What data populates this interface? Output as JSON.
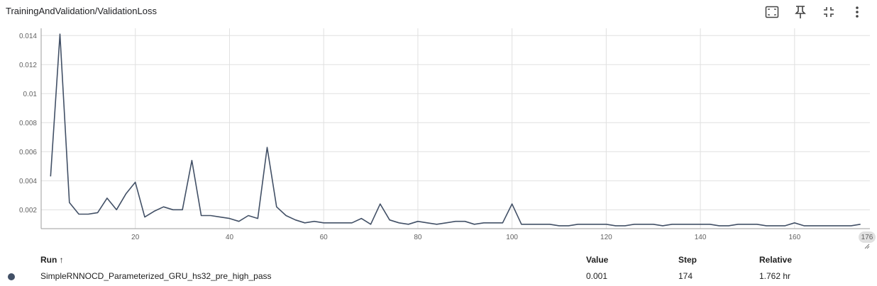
{
  "title": "TrainingAndValidation/ValidationLoss",
  "toolbar": {
    "icons": [
      "fit-domain-icon",
      "pin-icon",
      "fullscreen-exit-icon",
      "more-vert-icon"
    ]
  },
  "colors": {
    "series": "#425066",
    "grid": "#e0e0e0",
    "axis": "#9e9e9e"
  },
  "chart_data": {
    "type": "line",
    "title": "TrainingAndValidation/ValidationLoss",
    "xlabel": "",
    "ylabel": "",
    "xlim": [
      0,
      176
    ],
    "ylim": [
      0.0007,
      0.0145
    ],
    "x_ticks": [
      20,
      40,
      60,
      80,
      100,
      120,
      140,
      160
    ],
    "y_ticks": [
      0.002,
      0.004,
      0.006,
      0.008,
      0.01,
      0.012,
      0.014
    ],
    "y_tick_labels": [
      "0.002",
      "0.004",
      "0.006",
      "0.008",
      "0.01",
      "0.012",
      "0.014"
    ],
    "x_edge_label": "176",
    "grid": true,
    "series": [
      {
        "name": "SimpleRNNOCD_Parameterized_GRU_hs32_pre_high_pass",
        "color": "#425066",
        "x": [
          2,
          4,
          6,
          8,
          10,
          12,
          14,
          16,
          18,
          20,
          22,
          24,
          26,
          28,
          30,
          32,
          34,
          36,
          38,
          40,
          42,
          44,
          46,
          48,
          50,
          52,
          54,
          56,
          58,
          60,
          62,
          64,
          66,
          68,
          70,
          72,
          74,
          76,
          78,
          80,
          82,
          84,
          86,
          88,
          90,
          92,
          94,
          96,
          98,
          100,
          102,
          104,
          106,
          108,
          110,
          112,
          114,
          116,
          118,
          120,
          122,
          124,
          126,
          128,
          130,
          132,
          134,
          136,
          138,
          140,
          142,
          144,
          146,
          148,
          150,
          152,
          154,
          156,
          158,
          160,
          162,
          164,
          166,
          168,
          170,
          172,
          174
        ],
        "y": [
          0.0043,
          0.0141,
          0.0025,
          0.0017,
          0.0017,
          0.0018,
          0.0028,
          0.002,
          0.0031,
          0.0039,
          0.0015,
          0.0019,
          0.0022,
          0.002,
          0.002,
          0.0054,
          0.0016,
          0.0016,
          0.0015,
          0.0014,
          0.0012,
          0.0016,
          0.0014,
          0.0063,
          0.0022,
          0.0016,
          0.0013,
          0.0011,
          0.0012,
          0.0011,
          0.0011,
          0.0011,
          0.0011,
          0.0014,
          0.001,
          0.0024,
          0.0013,
          0.0011,
          0.001,
          0.0012,
          0.0011,
          0.001,
          0.0011,
          0.0012,
          0.0012,
          0.001,
          0.0011,
          0.0011,
          0.0011,
          0.0024,
          0.001,
          0.001,
          0.001,
          0.001,
          0.0009,
          0.0009,
          0.001,
          0.001,
          0.001,
          0.001,
          0.0009,
          0.0009,
          0.001,
          0.001,
          0.001,
          0.0009,
          0.001,
          0.001,
          0.001,
          0.001,
          0.001,
          0.0009,
          0.0009,
          0.001,
          0.001,
          0.001,
          0.0009,
          0.0009,
          0.0009,
          0.0011,
          0.0009,
          0.0009,
          0.0009,
          0.0009,
          0.0009,
          0.0009,
          0.001
        ]
      }
    ]
  },
  "runs_table": {
    "headers": {
      "run": "Run ↑",
      "value": "Value",
      "step": "Step",
      "relative": "Relative"
    },
    "rows": [
      {
        "name": "SimpleRNNOCD_Parameterized_GRU_hs32_pre_high_pass",
        "value": "0.001",
        "step": "174",
        "relative": "1.762 hr",
        "color": "#425066"
      }
    ]
  }
}
